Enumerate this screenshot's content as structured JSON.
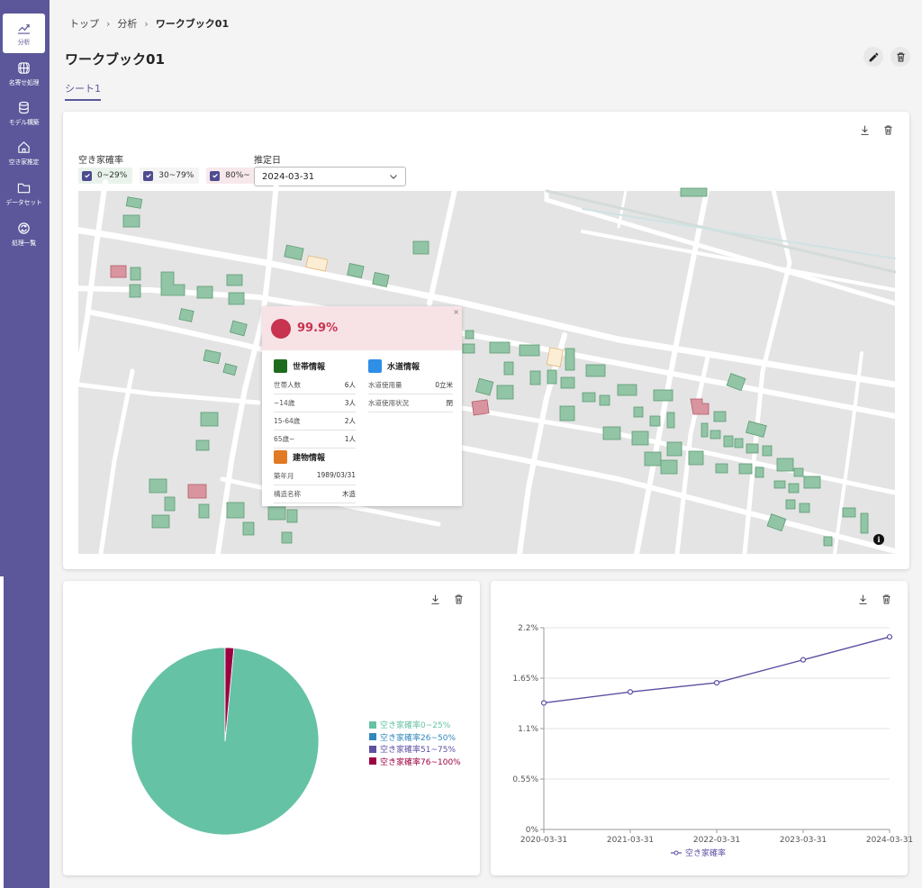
{
  "sidebar": {
    "items": [
      {
        "label": "分析",
        "icon": "chart-line-icon"
      },
      {
        "label": "名寄せ処理",
        "icon": "globe-icon"
      },
      {
        "label": "モデル構築",
        "icon": "database-icon"
      },
      {
        "label": "空き家推定",
        "icon": "home-icon"
      },
      {
        "label": "データセット",
        "icon": "folder-icon"
      },
      {
        "label": "処理一覧",
        "icon": "refresh-icon"
      }
    ]
  },
  "breadcrumb": {
    "items": [
      "トップ",
      "分析",
      "ワークブック01"
    ]
  },
  "page": {
    "title": "ワークブック01",
    "sheet_tab": "シート1"
  },
  "map_card": {
    "filter_label": "空き家確率",
    "chips": [
      {
        "label": "0~29%",
        "bg": "#e9f3ec"
      },
      {
        "label": "30~79%",
        "bg": "#f4f4f4"
      },
      {
        "label": "80%~",
        "bg": "#f7e8eb"
      }
    ],
    "date_label": "推定日",
    "date_value": "2024-03-31",
    "popup": {
      "probability": "99.9%",
      "close": "×",
      "household": {
        "title": "世帯情報",
        "color": "#1e6b1e",
        "rows": [
          {
            "k": "世帯人数",
            "v": "6人"
          },
          {
            "k": "~14歳",
            "v": "3人"
          },
          {
            "k": "15-64歳",
            "v": "2人"
          },
          {
            "k": "65歳~",
            "v": "1人"
          }
        ]
      },
      "water": {
        "title": "水道情報",
        "color": "#2f8ee6",
        "rows": [
          {
            "k": "水道使用量",
            "v": "0立米"
          },
          {
            "k": "水道使用状況",
            "v": "閉"
          }
        ]
      },
      "building": {
        "title": "建物情報",
        "color": "#e07a24",
        "rows": [
          {
            "k": "築年月",
            "v": "1989/03/31"
          },
          {
            "k": "構造名称",
            "v": "木造"
          }
        ]
      }
    },
    "info_glyph": "i"
  },
  "chart_data": [
    {
      "type": "pie",
      "categories": [
        "空き家確率0~25%",
        "空き家確率26~50%",
        "空き家確率51~75%",
        "空き家確率76~100%"
      ],
      "values": [
        98.5,
        0,
        0,
        1.5
      ],
      "colors": [
        "#66c2a5",
        "#3288bd",
        "#5e4fa2",
        "#9e0142"
      ],
      "legend_position": "right"
    },
    {
      "type": "line",
      "x": [
        "2020-03-31",
        "2021-03-31",
        "2022-03-31",
        "2023-03-31",
        "2024-03-31"
      ],
      "series": [
        {
          "name": "空き家確率",
          "values": [
            1.38,
            1.5,
            1.6,
            1.85,
            2.1
          ],
          "color": "#5e4fa2"
        }
      ],
      "yticks": [
        "0%",
        "0.55%",
        "1.1%",
        "1.65%",
        "2.2%"
      ],
      "ylim": [
        0,
        2.2
      ],
      "grid": true,
      "legend_position": "bottom"
    }
  ]
}
